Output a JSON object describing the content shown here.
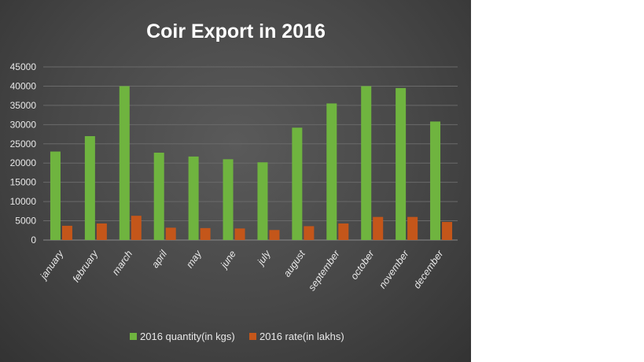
{
  "chart_data": {
    "type": "bar",
    "title": "Coir Export  in  2016",
    "xlabel": "",
    "ylabel": "",
    "categories": [
      "january",
      "february",
      "march",
      "april",
      "may",
      "june",
      "july",
      "august",
      "september",
      "october",
      "november",
      "december"
    ],
    "series": [
      {
        "name": "2016 quantity(in kgs)",
        "color": "#6fb43f",
        "values": [
          23000,
          27000,
          40000,
          22700,
          21700,
          21000,
          20200,
          29200,
          35500,
          40000,
          39500,
          30800
        ]
      },
      {
        "name": "2016 rate(in lakhs)",
        "color": "#c4561a",
        "values": [
          3700,
          4300,
          6300,
          3200,
          3100,
          3000,
          2600,
          3600,
          4300,
          6000,
          6000,
          4700
        ]
      }
    ],
    "yticks": [
      "0",
      "5000",
      "10000",
      "15000",
      "20000",
      "25000",
      "30000",
      "35000",
      "40000",
      "45000"
    ],
    "ylim": [
      0,
      45000
    ],
    "grid": true,
    "legend_position": "bottom"
  }
}
